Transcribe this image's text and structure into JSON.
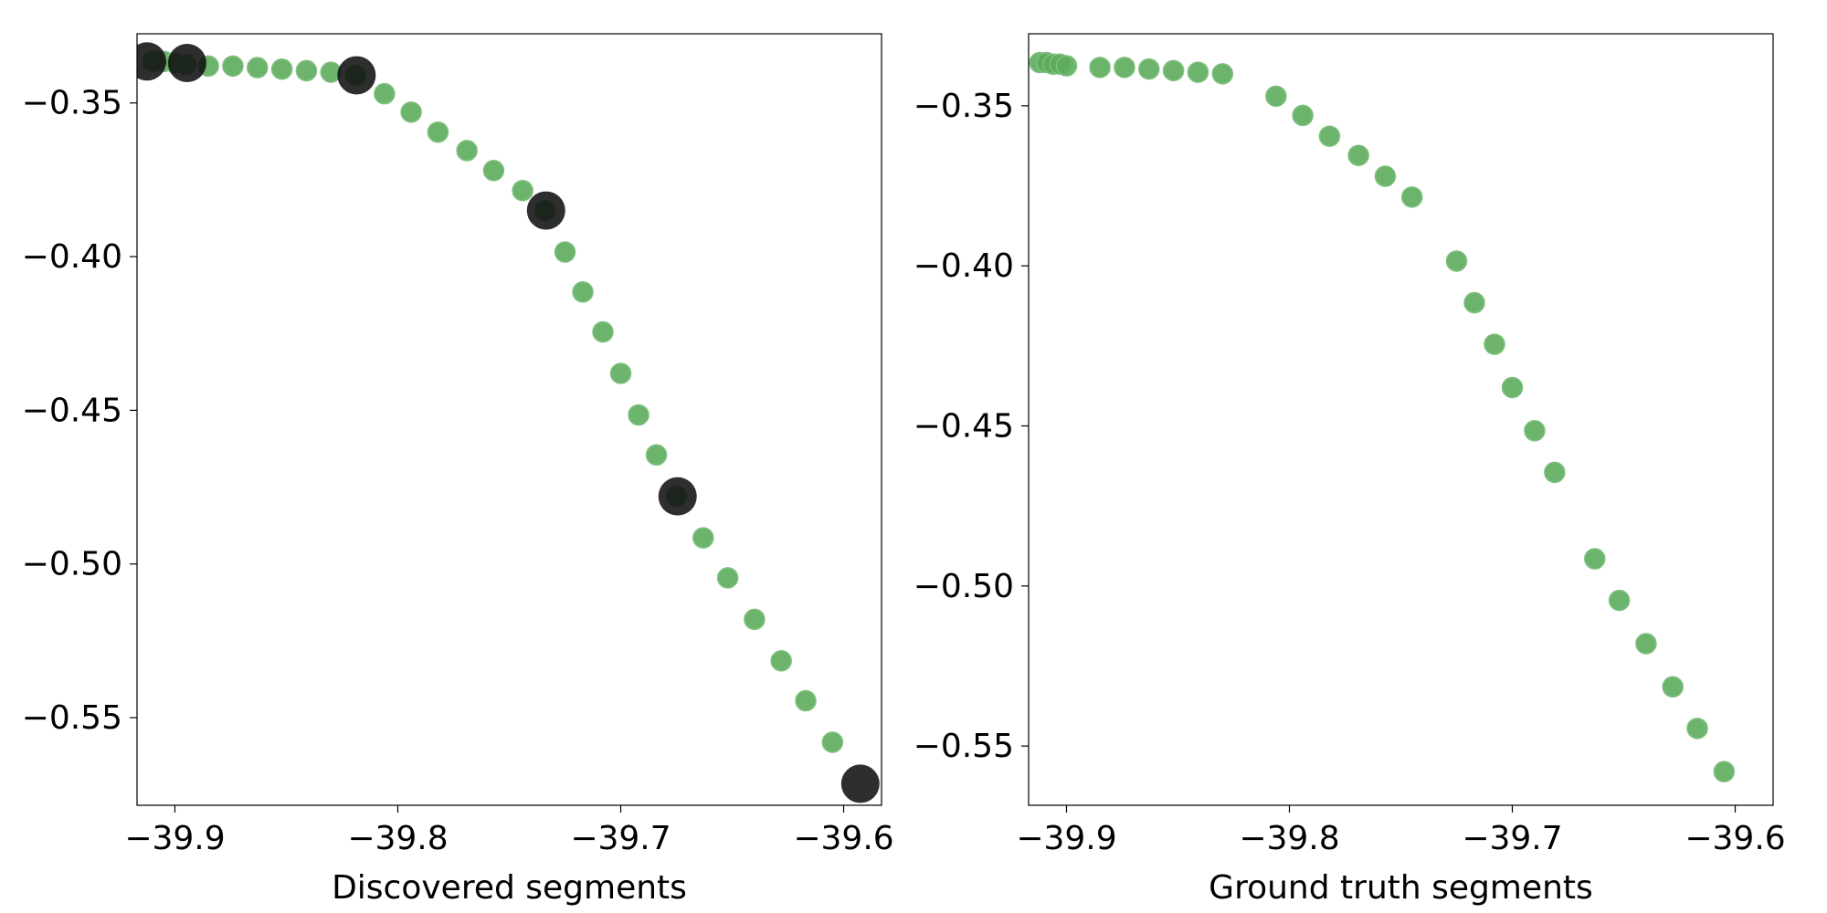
{
  "chart_data": [
    {
      "type": "scatter",
      "xlabel": "Discovered segments",
      "ylabel": "",
      "xlim": [
        -39.917,
        -39.583
      ],
      "ylim": [
        -0.5785,
        -0.3275
      ],
      "xticks": [
        -39.9,
        -39.8,
        -39.7,
        -39.6
      ],
      "xtick_labels": [
        "−39.9",
        "−39.8",
        "−39.7",
        "−39.6"
      ],
      "yticks": [
        -0.35,
        -0.4,
        -0.45,
        -0.5,
        -0.55
      ],
      "ytick_labels": [
        "−0.35",
        "−0.40",
        "−0.45",
        "−0.50",
        "−0.55"
      ],
      "grid": false,
      "series": [
        {
          "marker": "circle",
          "color": "#5cac5c",
          "x": [
            -39.91,
            -39.905,
            -39.9,
            -39.895,
            -39.885,
            -39.874,
            -39.863,
            -39.852,
            -39.841,
            -39.83,
            -39.819,
            -39.806,
            -39.794,
            -39.782,
            -39.769,
            -39.757,
            -39.744,
            -39.734,
            -39.725,
            -39.717,
            -39.708,
            -39.7,
            -39.692,
            -39.684,
            -39.675,
            -39.663,
            -39.652,
            -39.64,
            -39.628,
            -39.617,
            -39.605
          ],
          "y": [
            -0.3365,
            -0.3365,
            -0.337,
            -0.3375,
            -0.338,
            -0.338,
            -0.3385,
            -0.339,
            -0.3395,
            -0.34,
            -0.341,
            -0.347,
            -0.353,
            -0.3595,
            -0.3655,
            -0.372,
            -0.3785,
            -0.385,
            -0.3985,
            -0.4115,
            -0.4245,
            -0.438,
            -0.4515,
            -0.4645,
            -0.478,
            -0.4915,
            -0.5045,
            -0.518,
            -0.5315,
            -0.5445,
            -0.558
          ]
        },
        {
          "marker": "circle",
          "color": "#111111",
          "x": [
            -39.9125,
            -39.8945,
            -39.8185,
            -39.7335,
            -39.6745,
            -39.5925
          ],
          "y": [
            -0.3365,
            -0.337,
            -0.341,
            -0.385,
            -0.478,
            -0.5715
          ]
        }
      ]
    },
    {
      "type": "scatter",
      "xlabel": "Ground truth segments",
      "ylabel": "",
      "xlim": [
        -39.917,
        -39.583
      ],
      "ylim": [
        -0.5685,
        -0.3275
      ],
      "xticks": [
        -39.9,
        -39.8,
        -39.7,
        -39.6
      ],
      "xtick_labels": [
        "−39.9",
        "−39.8",
        "−39.7",
        "−39.6"
      ],
      "yticks": [
        -0.35,
        -0.4,
        -0.45,
        -0.5,
        -0.55
      ],
      "ytick_labels": [
        "−0.35",
        "−0.40",
        "−0.45",
        "−0.50",
        "−0.55"
      ],
      "grid": false,
      "series": [
        {
          "marker": "circle",
          "color": "#5cac5c",
          "x": [
            -39.912,
            -39.909,
            -39.906,
            -39.903,
            -39.9,
            -39.885,
            -39.874,
            -39.863,
            -39.852,
            -39.841,
            -39.83,
            -39.806,
            -39.794,
            -39.782,
            -39.769,
            -39.757,
            -39.745,
            -39.725,
            -39.717,
            -39.708,
            -39.7,
            -39.69,
            -39.681,
            -39.663,
            -39.652,
            -39.64,
            -39.628,
            -39.617,
            -39.605
          ],
          "y": [
            -0.3365,
            -0.3365,
            -0.337,
            -0.337,
            -0.3375,
            -0.338,
            -0.338,
            -0.3385,
            -0.339,
            -0.3395,
            -0.34,
            -0.347,
            -0.353,
            -0.3595,
            -0.3655,
            -0.372,
            -0.3785,
            -0.3985,
            -0.4115,
            -0.4245,
            -0.438,
            -0.4515,
            -0.4645,
            -0.4915,
            -0.5045,
            -0.518,
            -0.5315,
            -0.5445,
            -0.558
          ]
        }
      ]
    }
  ]
}
